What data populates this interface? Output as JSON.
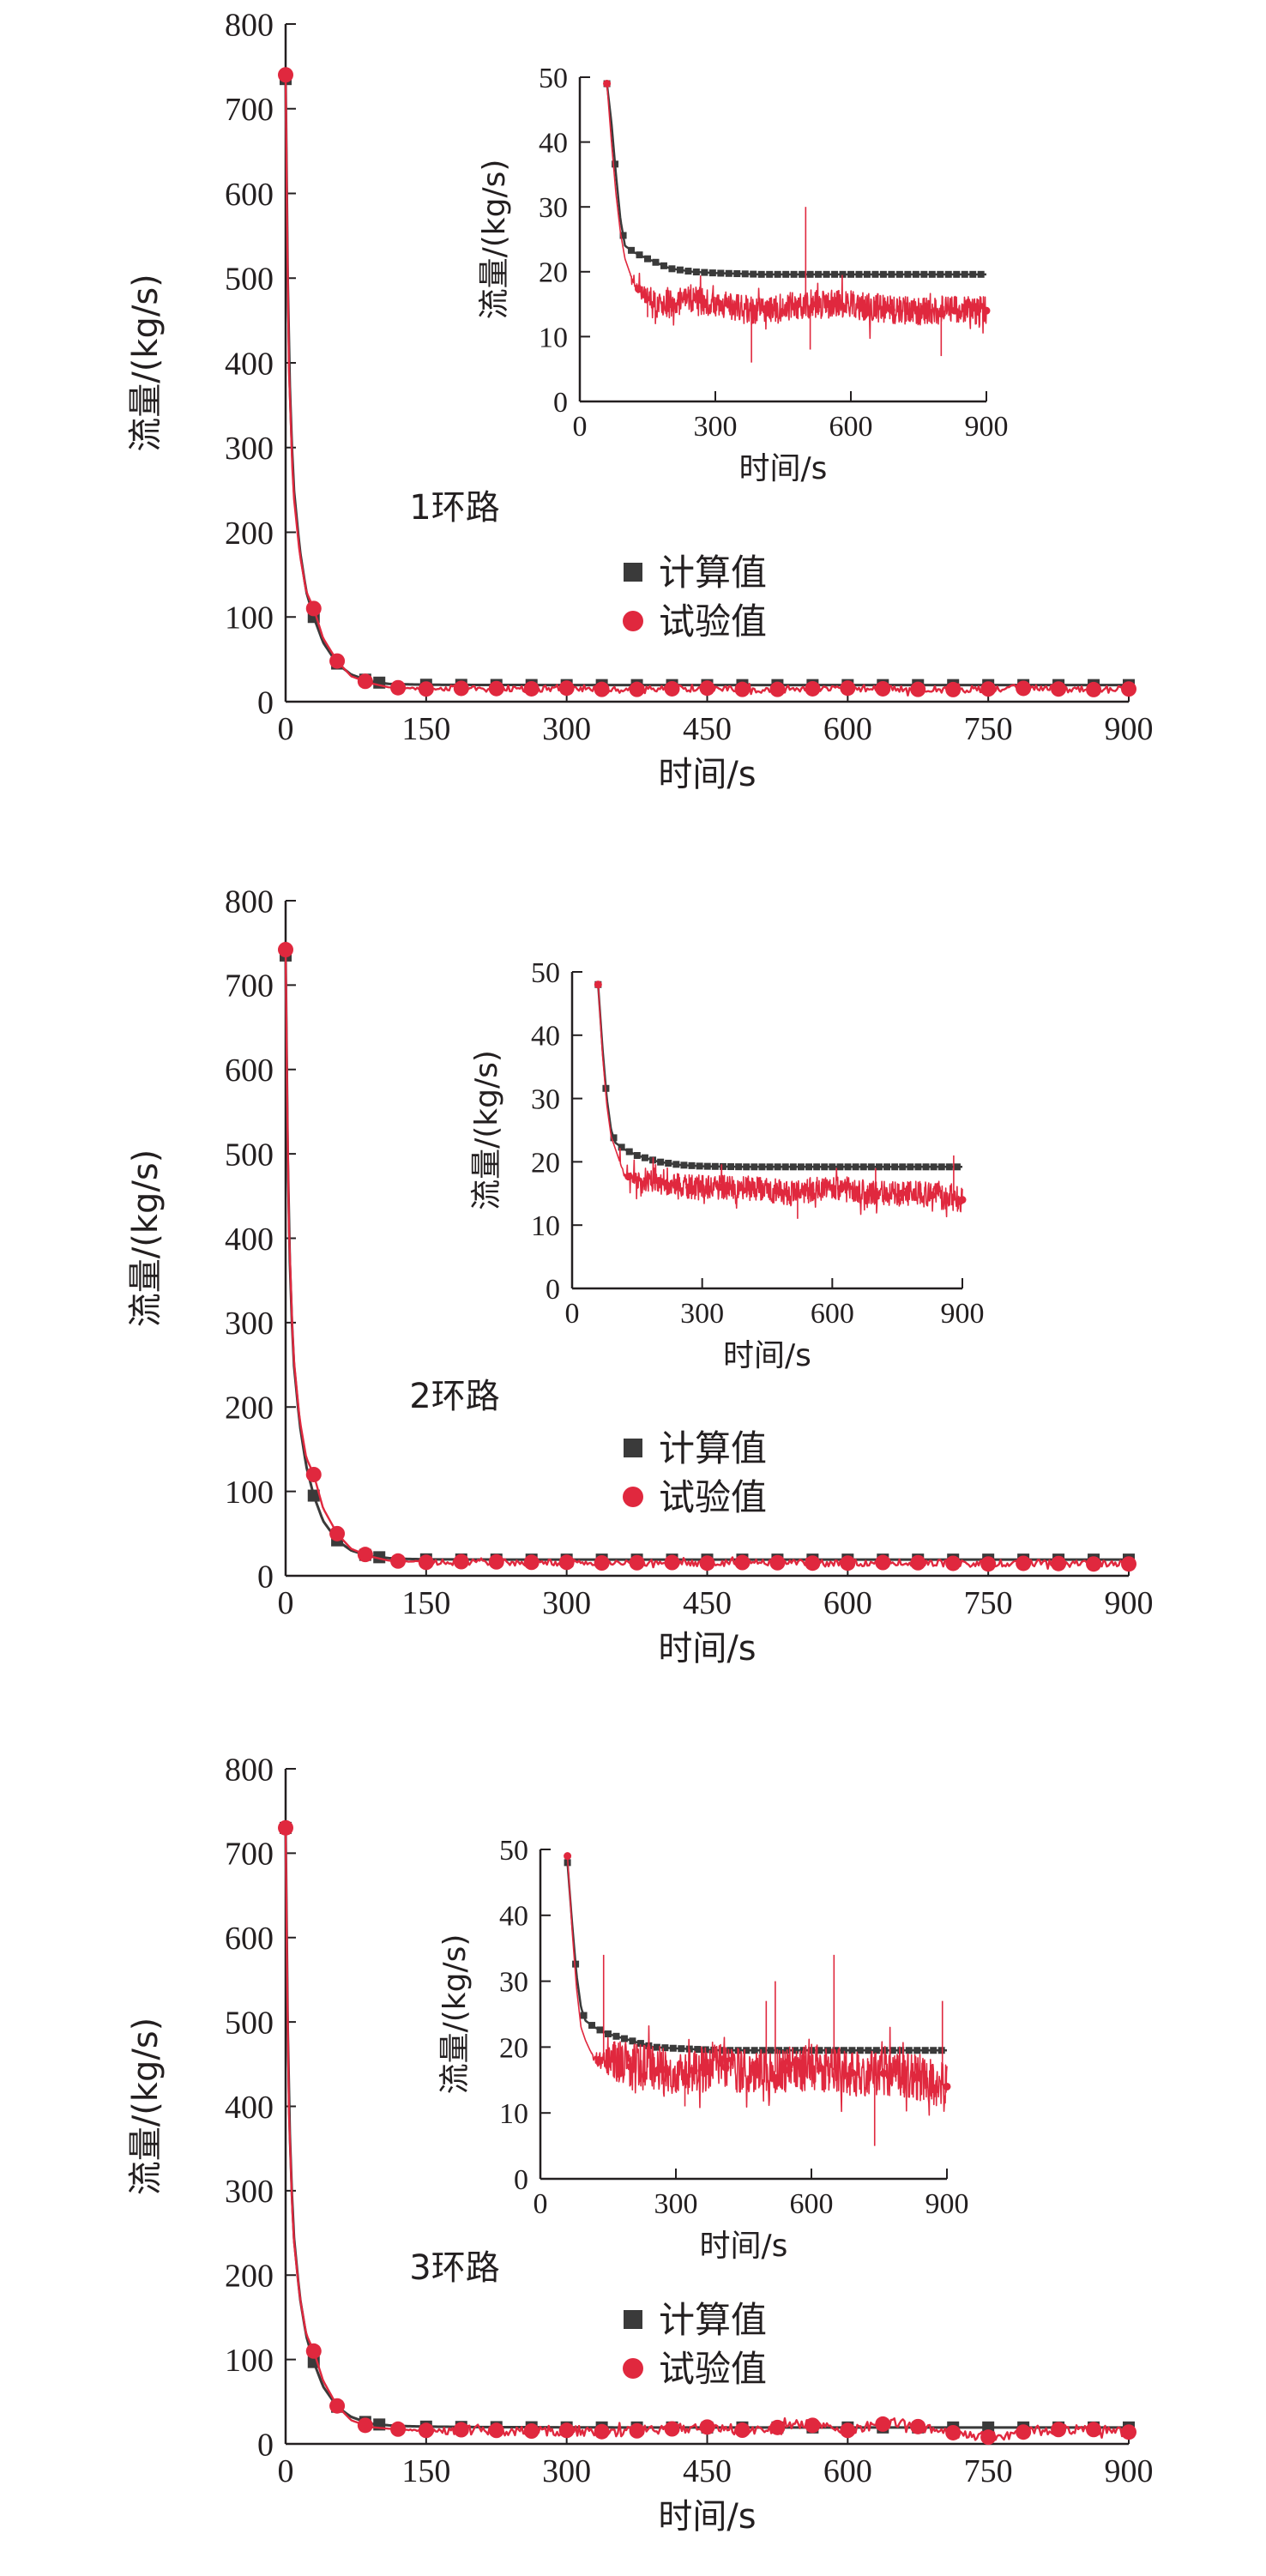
{
  "colors": {
    "computed": "#3a3a3a",
    "experimental": "#e0283e",
    "axis": "#231f20"
  },
  "legend": {
    "computed_label": "计算值",
    "experimental_label": "试验值",
    "placement": "center-right"
  },
  "chart_data": [
    {
      "type": "line",
      "panel": "main",
      "loop_label": "1环路",
      "xlabel": "时间/s",
      "ylabel": "流量/(kg/s)",
      "xlim": [
        0,
        900
      ],
      "ylim": [
        0,
        800
      ],
      "xticks": [
        0,
        150,
        300,
        450,
        600,
        750,
        900
      ],
      "yticks": [
        0,
        100,
        200,
        300,
        400,
        500,
        600,
        700,
        800
      ],
      "grid": false,
      "series": [
        {
          "name": "计算值",
          "marker": "square",
          "x": [
            0,
            3,
            8,
            15,
            22,
            30,
            40,
            55,
            70,
            90,
            110,
            130,
            150,
            200,
            250,
            300,
            350,
            400,
            450,
            500,
            550,
            600,
            650,
            700,
            750,
            800,
            850,
            900
          ],
          "values": [
            735,
            420,
            260,
            180,
            130,
            100,
            70,
            45,
            32,
            24,
            21,
            20.5,
            20,
            19.8,
            19.7,
            19.6,
            19.6,
            19.6,
            19.6,
            19.6,
            19.6,
            19.6,
            19.6,
            19.6,
            19.6,
            19.6,
            19.6,
            19.6
          ]
        },
        {
          "name": "试验值",
          "marker": "circle",
          "x": [
            0,
            3,
            8,
            15,
            22,
            30,
            40,
            55,
            70,
            90,
            110,
            130,
            150,
            200,
            250,
            300,
            350,
            400,
            450,
            500,
            550,
            600,
            650,
            700,
            750,
            800,
            850,
            900
          ],
          "values": [
            740,
            410,
            250,
            175,
            130,
            110,
            75,
            48,
            30,
            22,
            17,
            16,
            15,
            16,
            15,
            16,
            14,
            15,
            16,
            14,
            15,
            16,
            15,
            14,
            15,
            16,
            14,
            15
          ]
        }
      ]
    },
    {
      "type": "line",
      "panel": "inset",
      "xlabel": "时间/s",
      "ylabel": "流量/(kg/s)",
      "xlim": [
        0,
        900
      ],
      "ylim": [
        0,
        50
      ],
      "xticks": [
        0,
        300,
        600,
        900
      ],
      "yticks": [
        0,
        10,
        20,
        30,
        40,
        50
      ],
      "series": [
        {
          "name": "计算值",
          "x": [
            60,
            70,
            80,
            90,
            100,
            120,
            150,
            200,
            250,
            300,
            400,
            500,
            600,
            700,
            800,
            900
          ],
          "values": [
            49,
            43,
            35,
            28,
            24,
            23,
            22,
            20.5,
            20,
            19.8,
            19.6,
            19.6,
            19.6,
            19.6,
            19.6,
            19.6
          ]
        },
        {
          "name": "试验值",
          "x": [
            60,
            70,
            80,
            90,
            100,
            120,
            150,
            200,
            250,
            300,
            380,
            500,
            600,
            700,
            800,
            900
          ],
          "values": [
            49,
            40,
            32,
            26,
            22,
            18,
            16,
            15,
            16,
            15,
            14,
            15,
            15,
            14,
            14,
            14
          ]
        }
      ]
    },
    {
      "type": "line",
      "panel": "main",
      "loop_label": "2环路",
      "xlabel": "时间/s",
      "ylabel": "流量/(kg/s)",
      "xlim": [
        0,
        900
      ],
      "ylim": [
        0,
        800
      ],
      "xticks": [
        0,
        150,
        300,
        450,
        600,
        750,
        900
      ],
      "yticks": [
        0,
        100,
        200,
        300,
        400,
        500,
        600,
        700,
        800
      ],
      "grid": false,
      "series": [
        {
          "name": "计算值",
          "marker": "square",
          "x": [
            0,
            3,
            8,
            15,
            22,
            30,
            40,
            55,
            70,
            90,
            110,
            130,
            150,
            200,
            250,
            300,
            350,
            400,
            450,
            500,
            550,
            600,
            650,
            700,
            750,
            800,
            850,
            900
          ],
          "values": [
            735,
            420,
            260,
            180,
            130,
            95,
            65,
            42,
            30,
            23,
            21,
            20,
            19.5,
            19.3,
            19.2,
            19.2,
            19.2,
            19.2,
            19.2,
            19.2,
            19.2,
            19.2,
            19.2,
            19.2,
            19.2,
            19.2,
            19.2,
            19.2
          ]
        },
        {
          "name": "试验值",
          "marker": "circle",
          "x": [
            0,
            3,
            8,
            15,
            22,
            30,
            40,
            55,
            70,
            90,
            110,
            130,
            150,
            200,
            250,
            300,
            350,
            400,
            450,
            500,
            550,
            600,
            650,
            700,
            750,
            800,
            850,
            900
          ],
          "values": [
            742,
            430,
            265,
            185,
            140,
            120,
            80,
            50,
            32,
            23,
            18,
            17,
            16,
            17,
            16,
            16,
            15,
            16,
            15,
            16,
            15,
            15,
            16,
            15,
            14,
            15,
            14,
            14
          ]
        }
      ]
    },
    {
      "type": "line",
      "panel": "inset",
      "xlabel": "时间/s",
      "ylabel": "流量/(kg/s)",
      "xlim": [
        0,
        900
      ],
      "ylim": [
        0,
        50
      ],
      "xticks": [
        0,
        300,
        600,
        900
      ],
      "yticks": [
        0,
        10,
        20,
        30,
        40,
        50
      ],
      "series": [
        {
          "name": "计算值",
          "x": [
            60,
            70,
            80,
            90,
            100,
            120,
            150,
            200,
            250,
            300,
            400,
            500,
            600,
            700,
            800,
            900
          ],
          "values": [
            48,
            38,
            30,
            25,
            23,
            22,
            21,
            20,
            19.5,
            19.3,
            19.2,
            19.2,
            19.2,
            19.2,
            19.2,
            19.2
          ]
        },
        {
          "name": "试验值",
          "x": [
            60,
            70,
            80,
            90,
            100,
            120,
            150,
            200,
            250,
            300,
            400,
            500,
            600,
            700,
            800,
            900
          ],
          "values": [
            48,
            37,
            29,
            24,
            22,
            18,
            17,
            17,
            16,
            16,
            16,
            15,
            16,
            15,
            15,
            14
          ]
        }
      ]
    },
    {
      "type": "line",
      "panel": "main",
      "loop_label": "3环路",
      "xlabel": "时间/s",
      "ylabel": "流量/(kg/s)",
      "xlim": [
        0,
        900
      ],
      "ylim": [
        0,
        800
      ],
      "xticks": [
        0,
        150,
        300,
        450,
        600,
        750,
        900
      ],
      "yticks": [
        0,
        100,
        200,
        300,
        400,
        500,
        600,
        700,
        800
      ],
      "grid": false,
      "series": [
        {
          "name": "计算值",
          "marker": "square",
          "x": [
            0,
            3,
            8,
            15,
            22,
            30,
            40,
            55,
            70,
            90,
            110,
            130,
            150,
            200,
            250,
            300,
            350,
            400,
            450,
            500,
            550,
            600,
            650,
            700,
            750,
            800,
            850,
            900
          ],
          "values": [
            730,
            415,
            255,
            175,
            128,
            97,
            68,
            44,
            32,
            24,
            22,
            21,
            20.5,
            20,
            19.8,
            19.6,
            19.5,
            19.5,
            19.5,
            19.5,
            19.5,
            19.5,
            19.5,
            19.5,
            19.5,
            19.5,
            19.5,
            19.5
          ]
        },
        {
          "name": "试验值",
          "marker": "circle",
          "x": [
            0,
            3,
            8,
            15,
            22,
            30,
            40,
            55,
            70,
            90,
            110,
            130,
            150,
            200,
            250,
            300,
            350,
            400,
            450,
            500,
            550,
            600,
            650,
            700,
            750,
            800,
            850,
            900
          ],
          "values": [
            730,
            410,
            250,
            175,
            130,
            110,
            75,
            45,
            28,
            20,
            18,
            17,
            16,
            17,
            15,
            16,
            14,
            17,
            20,
            15,
            24,
            16,
            26,
            15,
            8,
            16,
            18,
            14
          ]
        }
      ]
    },
    {
      "type": "line",
      "panel": "inset",
      "xlabel": "时间/s",
      "ylabel": "流量/(kg/s)",
      "xlim": [
        0,
        900
      ],
      "ylim": [
        0,
        50
      ],
      "xticks": [
        0,
        300,
        600,
        900
      ],
      "yticks": [
        0,
        10,
        20,
        30,
        40,
        50
      ],
      "series": [
        {
          "name": "计算值",
          "x": [
            60,
            70,
            80,
            90,
            100,
            120,
            150,
            200,
            250,
            300,
            400,
            500,
            600,
            700,
            800,
            900
          ],
          "values": [
            48,
            39,
            31,
            26,
            24,
            23,
            22,
            21,
            20,
            19.8,
            19.5,
            19.5,
            19.5,
            19.5,
            19.5,
            19.5
          ]
        },
        {
          "name": "试验值",
          "x": [
            60,
            70,
            80,
            90,
            100,
            120,
            150,
            200,
            250,
            300,
            400,
            500,
            600,
            700,
            800,
            900
          ],
          "values": [
            49,
            38,
            29,
            23,
            21,
            18,
            18,
            17,
            17,
            16,
            17,
            16,
            17,
            16,
            16,
            14
          ]
        }
      ]
    }
  ]
}
